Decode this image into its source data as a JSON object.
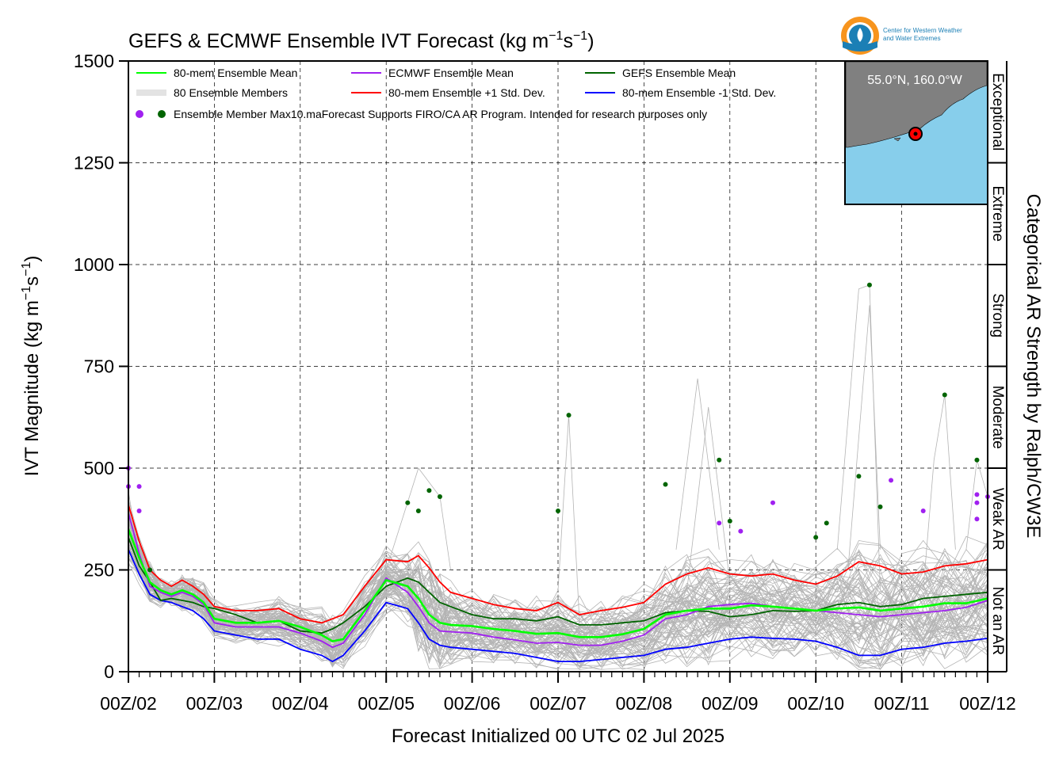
{
  "header": {
    "title_main": "GEFS & ECMWF Ensemble IVT Forecast (kg m",
    "title_sup1": "−1",
    "title_mid": "s",
    "title_sup2": "−1",
    "title_end": ")",
    "logo_line1": "Center for Western Weather",
    "logo_line2": "and Water Extremes"
  },
  "inset": {
    "location": "55.0°N, 160.0°W",
    "colors": {
      "ocean": "#87CEEB",
      "land": "#808080",
      "marker": "#ff0000"
    }
  },
  "legend": {
    "items": [
      {
        "label": "80-mem Ensemble Mean",
        "color": "#00ff00"
      },
      {
        "label": "ECMWF Ensemble Mean",
        "color": "#a020f0"
      },
      {
        "label": "GEFS Ensemble Mean",
        "color": "#006400"
      },
      {
        "label": "80 Ensemble Members",
        "color": "#b4b4b4"
      },
      {
        "label": "80-mem Ensemble +1 Std. Dev.",
        "color": "#ff0000"
      },
      {
        "label": "80-mem Ensemble -1 Std. Dev.",
        "color": "#0000ff"
      }
    ],
    "max_label": "Ensemble Member Max",
    "disclaimer": "10.maForecast Supports FIRO/CA AR Program. Intended for research purposes only"
  },
  "chart_data": {
    "type": "line",
    "title": "GEFS & ECMWF Ensemble IVT Forecast (kg m−1s−1)",
    "xlabel": "Forecast Initialized 00 UTC 02 Jul 2025",
    "ylabel_main": "IVT Magnitude (kg m",
    "ylabel_sup1": "−1",
    "ylabel_mid": "s",
    "ylabel_sup2": "−1",
    "ylabel_end": ")",
    "right_label": "Categorical AR Strength by Ralph/CW3E",
    "ylim": [
      0,
      1500
    ],
    "xlim_days": [
      2,
      12
    ],
    "yticks": [
      0,
      250,
      500,
      750,
      1000,
      1250,
      1500
    ],
    "xtick_labels": [
      "00Z/02",
      "00Z/03",
      "00Z/04",
      "00Z/05",
      "00Z/06",
      "00Z/07",
      "00Z/08",
      "00Z/09",
      "00Z/10",
      "00Z/11",
      "00Z/12"
    ],
    "categories": [
      {
        "label": "Not an AR",
        "range": [
          0,
          250
        ]
      },
      {
        "label": "Weak AR",
        "range": [
          250,
          500
        ]
      },
      {
        "label": "Moderate",
        "range": [
          500,
          750
        ]
      },
      {
        "label": "Strong",
        "range": [
          750,
          1000
        ]
      },
      {
        "label": "Extreme",
        "range": [
          1000,
          1250
        ]
      },
      {
        "label": "Exceptional",
        "range": [
          1250,
          1500
        ]
      }
    ],
    "grid": true,
    "series": [
      {
        "name": "80-mem Ensemble Mean",
        "color": "#00ff00",
        "x": [
          2.0,
          2.125,
          2.25,
          2.375,
          2.5,
          2.625,
          2.75,
          2.875,
          3.0,
          3.25,
          3.5,
          3.75,
          4.0,
          4.25,
          4.375,
          4.5,
          4.75,
          5.0,
          5.25,
          5.375,
          5.5,
          5.625,
          5.75,
          6.0,
          6.25,
          6.5,
          6.75,
          7.0,
          7.25,
          7.5,
          7.75,
          8.0,
          8.25,
          8.5,
          8.75,
          9.0,
          9.25,
          9.5,
          9.75,
          10.0,
          10.25,
          10.5,
          10.75,
          11.0,
          11.25,
          11.5,
          11.75,
          12.0
        ],
        "y": [
          350,
          280,
          220,
          200,
          190,
          200,
          190,
          170,
          130,
          120,
          120,
          125,
          110,
          90,
          75,
          80,
          150,
          225,
          210,
          180,
          140,
          120,
          115,
          112,
          105,
          100,
          93,
          95,
          85,
          85,
          92,
          105,
          140,
          150,
          155,
          155,
          163,
          160,
          155,
          150,
          155,
          158,
          150,
          155,
          160,
          168,
          168,
          180
        ]
      },
      {
        "name": "ECMWF Ensemble Mean",
        "color": "#a020f0",
        "x": [
          2.0,
          2.125,
          2.25,
          2.375,
          2.5,
          2.625,
          2.75,
          2.875,
          3.0,
          3.25,
          3.5,
          3.75,
          4.0,
          4.25,
          4.375,
          4.5,
          4.75,
          5.0,
          5.25,
          5.375,
          5.5,
          5.625,
          5.75,
          6.0,
          6.25,
          6.5,
          6.75,
          7.0,
          7.25,
          7.5,
          7.75,
          8.0,
          8.25,
          8.5,
          8.75,
          9.0,
          9.25,
          9.5,
          9.75,
          10.0,
          10.25,
          10.5,
          10.75,
          11.0,
          11.25,
          11.5,
          11.75,
          12.0
        ],
        "y": [
          390,
          290,
          210,
          195,
          185,
          195,
          185,
          165,
          120,
          110,
          110,
          110,
          95,
          75,
          60,
          70,
          140,
          230,
          195,
          160,
          120,
          100,
          98,
          95,
          85,
          78,
          70,
          72,
          65,
          65,
          75,
          90,
          130,
          140,
          160,
          165,
          168,
          160,
          155,
          150,
          145,
          140,
          135,
          140,
          145,
          150,
          158,
          175
        ]
      },
      {
        "name": "GEFS Ensemble Mean",
        "color": "#006400",
        "x": [
          2.0,
          2.125,
          2.25,
          2.375,
          2.5,
          2.625,
          2.75,
          2.875,
          3.0,
          3.25,
          3.5,
          3.75,
          4.0,
          4.25,
          4.375,
          4.5,
          4.75,
          5.0,
          5.25,
          5.375,
          5.5,
          5.625,
          5.75,
          6.0,
          6.25,
          6.5,
          6.75,
          7.0,
          7.25,
          7.5,
          7.75,
          8.0,
          8.25,
          8.5,
          8.75,
          9.0,
          9.25,
          9.5,
          9.75,
          10.0,
          10.25,
          10.5,
          10.75,
          11.0,
          11.25,
          11.5,
          11.75,
          12.0
        ],
        "y": [
          330,
          260,
          220,
          175,
          180,
          175,
          170,
          160,
          155,
          140,
          120,
          125,
          100,
          95,
          105,
          120,
          160,
          210,
          230,
          220,
          195,
          170,
          160,
          140,
          130,
          130,
          125,
          135,
          115,
          115,
          120,
          125,
          145,
          150,
          148,
          135,
          140,
          150,
          148,
          150,
          165,
          170,
          160,
          165,
          180,
          185,
          190,
          195
        ]
      },
      {
        "name": "80-mem Ensemble +1 Std. Dev.",
        "color": "#ff0000",
        "x": [
          2.0,
          2.125,
          2.25,
          2.375,
          2.5,
          2.625,
          2.75,
          2.875,
          3.0,
          3.25,
          3.5,
          3.75,
          4.0,
          4.25,
          4.375,
          4.5,
          4.75,
          5.0,
          5.25,
          5.375,
          5.5,
          5.625,
          5.75,
          6.0,
          6.25,
          6.5,
          6.75,
          7.0,
          7.25,
          7.5,
          7.75,
          8.0,
          8.25,
          8.5,
          8.75,
          9.0,
          9.25,
          9.5,
          9.75,
          10.0,
          10.25,
          10.5,
          10.75,
          11.0,
          11.25,
          11.5,
          11.75,
          12.0
        ],
        "y": [
          410,
          320,
          250,
          225,
          210,
          225,
          210,
          190,
          160,
          150,
          150,
          155,
          130,
          120,
          130,
          140,
          210,
          275,
          270,
          285,
          255,
          220,
          195,
          180,
          165,
          155,
          150,
          170,
          140,
          150,
          158,
          170,
          215,
          240,
          255,
          240,
          235,
          240,
          225,
          215,
          235,
          270,
          260,
          240,
          245,
          260,
          265,
          275
        ]
      },
      {
        "name": "80-mem Ensemble -1 Std. Dev.",
        "color": "#0000ff",
        "x": [
          2.0,
          2.125,
          2.25,
          2.375,
          2.5,
          2.625,
          2.75,
          2.875,
          3.0,
          3.25,
          3.5,
          3.75,
          4.0,
          4.25,
          4.375,
          4.5,
          4.75,
          5.0,
          5.25,
          5.375,
          5.5,
          5.625,
          5.75,
          6.0,
          6.25,
          6.5,
          6.75,
          7.0,
          7.25,
          7.5,
          7.75,
          8.0,
          8.25,
          8.5,
          8.75,
          9.0,
          9.25,
          9.5,
          9.75,
          10.0,
          10.25,
          10.5,
          10.75,
          11.0,
          11.25,
          11.5,
          11.75,
          12.0
        ],
        "y": [
          300,
          240,
          190,
          175,
          170,
          160,
          150,
          130,
          100,
          90,
          80,
          80,
          55,
          40,
          25,
          40,
          100,
          170,
          155,
          120,
          80,
          65,
          60,
          55,
          50,
          45,
          35,
          25,
          25,
          30,
          35,
          40,
          55,
          60,
          70,
          80,
          85,
          82,
          80,
          75,
          60,
          40,
          40,
          55,
          60,
          70,
          75,
          82
        ]
      }
    ],
    "member_max_ecmwf": {
      "x": [
        2.0,
        2.0,
        2.125,
        2.125,
        8.875,
        9.125,
        9.5,
        10.875,
        11.25,
        11.875,
        11.875,
        11.875,
        12.0
      ],
      "y": [
        500,
        455,
        455,
        395,
        365,
        345,
        415,
        470,
        395,
        435,
        415,
        375,
        430
      ]
    },
    "member_max_gefs": {
      "x": [
        2.25,
        5.25,
        5.375,
        5.5,
        5.625,
        7.0,
        7.125,
        8.25,
        8.875,
        9.0,
        10.0,
        10.125,
        10.5,
        10.625,
        10.75,
        11.5,
        11.875
      ],
      "y": [
        250,
        415,
        395,
        445,
        430,
        395,
        630,
        460,
        520,
        370,
        330,
        365,
        480,
        950,
        405,
        680,
        520
      ]
    },
    "member_traces_note": "80 Ensemble Members"
  }
}
